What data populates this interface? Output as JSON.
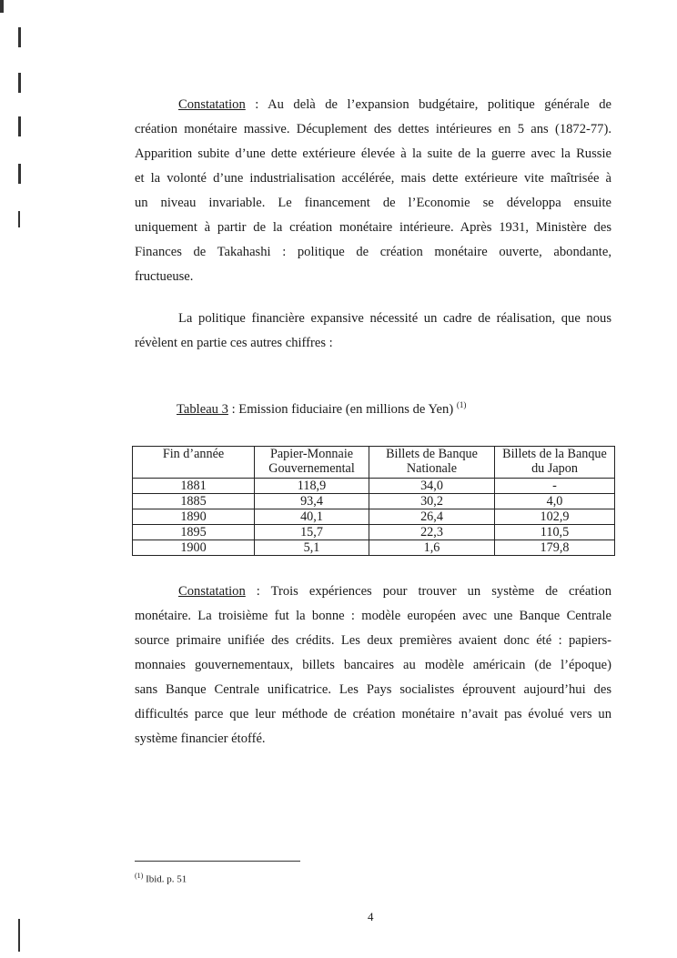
{
  "paragraph1": {
    "label": "Constatation",
    "first_line_rest": " : Au delà de l’expansion budgétaire, politique générale de",
    "lines": [
      "création monétaire massive. Décuplement des dettes intérieures en 5 ans (1872-77).",
      "Apparition subite d’une dette extérieure élevée à la suite de la guerre avec la Russie",
      "et la volonté d’une industrialisation accélérée, mais dette extérieure vite maîtrisée à",
      "un niveau invariable. Le financement de l’Economie se développa ensuite",
      "uniquement à partir de la création monétaire intérieure. Après 1931, Ministère des",
      "Finances de Takahashi : politique de création monétaire ouverte, abondante,",
      "fructueuse."
    ]
  },
  "paragraph2": {
    "lines": [
      "La politique financière expansive nécessité un cadre de réalisation, que nous",
      "révèlent en partie ces autres chiffres :"
    ]
  },
  "table": {
    "label": "Tableau 3",
    "title": " : Emission fiduciaire (en millions de Yen)",
    "note_ref": "(1)",
    "headers": [
      [
        "Fin d’année",
        ""
      ],
      [
        "Papier-Monnaie",
        "Gouvernemental"
      ],
      [
        "Billets de Banque",
        "Nationale"
      ],
      [
        "Billets de la Banque",
        "du Japon"
      ]
    ],
    "rows": [
      [
        "1881",
        "118,9",
        "34,0",
        "-"
      ],
      [
        "1885",
        "93,4",
        "30,2",
        "4,0"
      ],
      [
        "1890",
        "40,1",
        "26,4",
        "102,9"
      ],
      [
        "1895",
        "15,7",
        "22,3",
        "110,5"
      ],
      [
        "1900",
        "5,1",
        "1,6",
        "179,8"
      ]
    ]
  },
  "paragraph3": {
    "label": "Constatation",
    "first_line_rest": " : Trois expériences pour trouver un système de création",
    "lines": [
      "monétaire. La troisième fut la bonne : modèle européen avec une Banque Centrale",
      "source primaire unifiée des crédits. Les deux premières avaient donc été : papiers-",
      "monnaies gouvernementaux, billets bancaires au modèle américain (de l’époque)",
      "sans Banque Centrale unificatrice. Les Pays socialistes éprouvent aujourd’hui des",
      "difficultés parce que leur méthode de création monétaire n’avait pas évolué vers un",
      "système financier étoffé."
    ]
  },
  "footnote": {
    "ref": "(1)",
    "text": " Ibid. p. 51"
  },
  "page_number": "4"
}
